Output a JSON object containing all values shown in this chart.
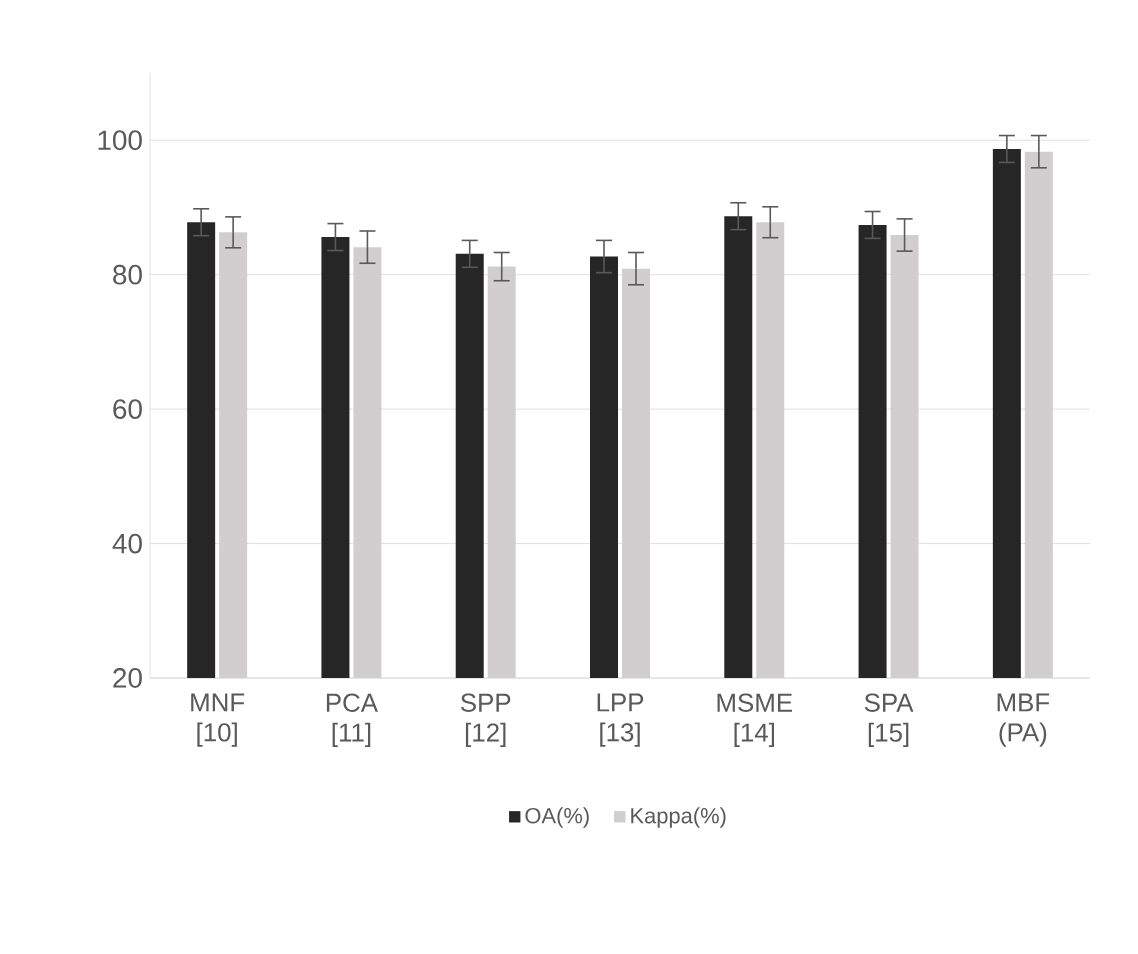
{
  "chart_data": {
    "type": "bar",
    "categories": [
      "MNF [10]",
      "PCA [11]",
      "SPP [12]",
      "LPP [13]",
      "MSME [14]",
      "SPA [15]",
      "MBF (PA)"
    ],
    "series": [
      {
        "name": "OA(%)",
        "color": "#262626",
        "values": [
          87.8,
          85.6,
          83.1,
          82.7,
          88.7,
          87.4,
          98.7
        ],
        "errors": [
          2,
          2,
          2,
          2.4,
          2,
          2,
          2
        ]
      },
      {
        "name": "Kappa(%)",
        "color": "#d0cece",
        "values": [
          86.3,
          84.1,
          81.2,
          80.9,
          87.8,
          85.9,
          98.3
        ],
        "errors": [
          2.3,
          2.4,
          2.1,
          2.4,
          2.3,
          2.4,
          2.4
        ]
      }
    ],
    "ylim": [
      20,
      110
    ],
    "yticks": [
      20,
      40,
      60,
      80,
      100
    ],
    "grid": "y",
    "legend": "bottom"
  }
}
